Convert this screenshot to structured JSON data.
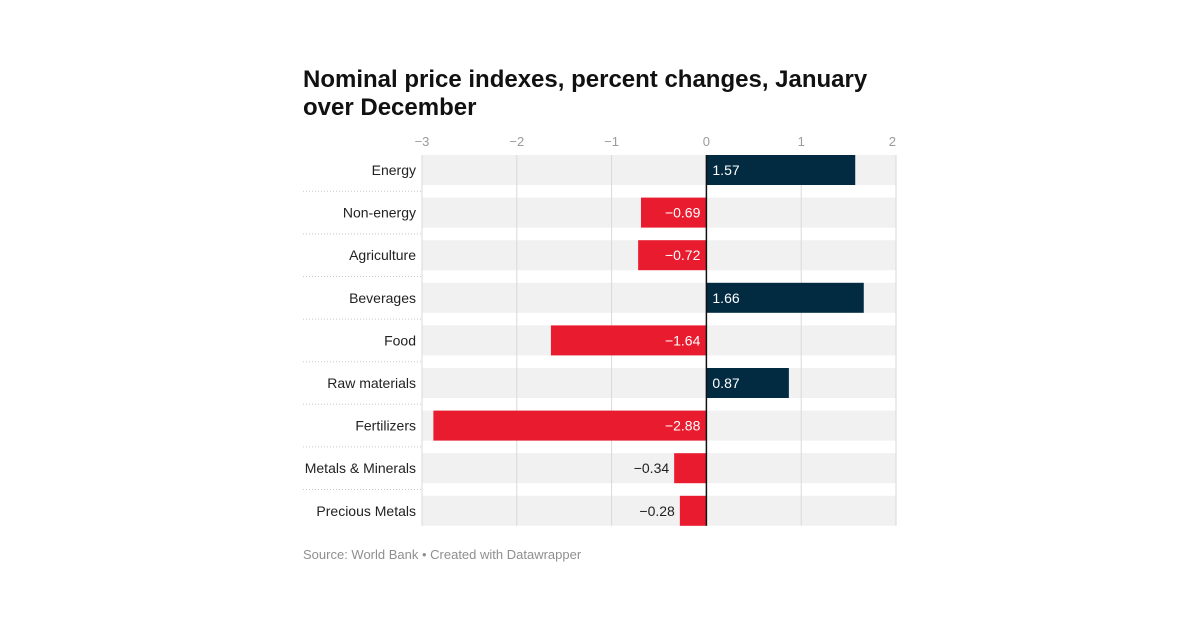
{
  "header": {
    "title": "Nominal price indexes, percent changes, January over December"
  },
  "footer": {
    "source": "Source: World Bank • Created with Datawrapper"
  },
  "colors": {
    "positive": "#022b42",
    "negative": "#e81c2e",
    "row_background": "#f1f1f1",
    "gridline": "#d9d9d9",
    "zero_line": "#111111"
  },
  "chart_data": {
    "type": "bar",
    "orientation": "horizontal",
    "title": "Nominal price indexes, percent changes, January over December",
    "xlim": [
      -3,
      2
    ],
    "x_ticks": [
      -3,
      -2,
      -1,
      0,
      1,
      2
    ],
    "x_tick_labels": [
      "−3",
      "−2",
      "−1",
      "0",
      "1",
      "2"
    ],
    "categories": [
      "Energy",
      "Non-energy",
      "Agriculture",
      "Beverages",
      "Food",
      "Raw materials",
      "Fertilizers",
      "Metals & Minerals",
      "Precious Metals"
    ],
    "values": [
      1.57,
      -0.69,
      -0.72,
      1.66,
      -1.64,
      0.87,
      -2.88,
      -0.34,
      -0.28
    ],
    "value_labels": [
      "1.57",
      "−0.69",
      "−0.72",
      "1.66",
      "−1.64",
      "0.87",
      "−2.88",
      "−0.34",
      "−0.28"
    ],
    "grid": true,
    "legend": "none"
  }
}
